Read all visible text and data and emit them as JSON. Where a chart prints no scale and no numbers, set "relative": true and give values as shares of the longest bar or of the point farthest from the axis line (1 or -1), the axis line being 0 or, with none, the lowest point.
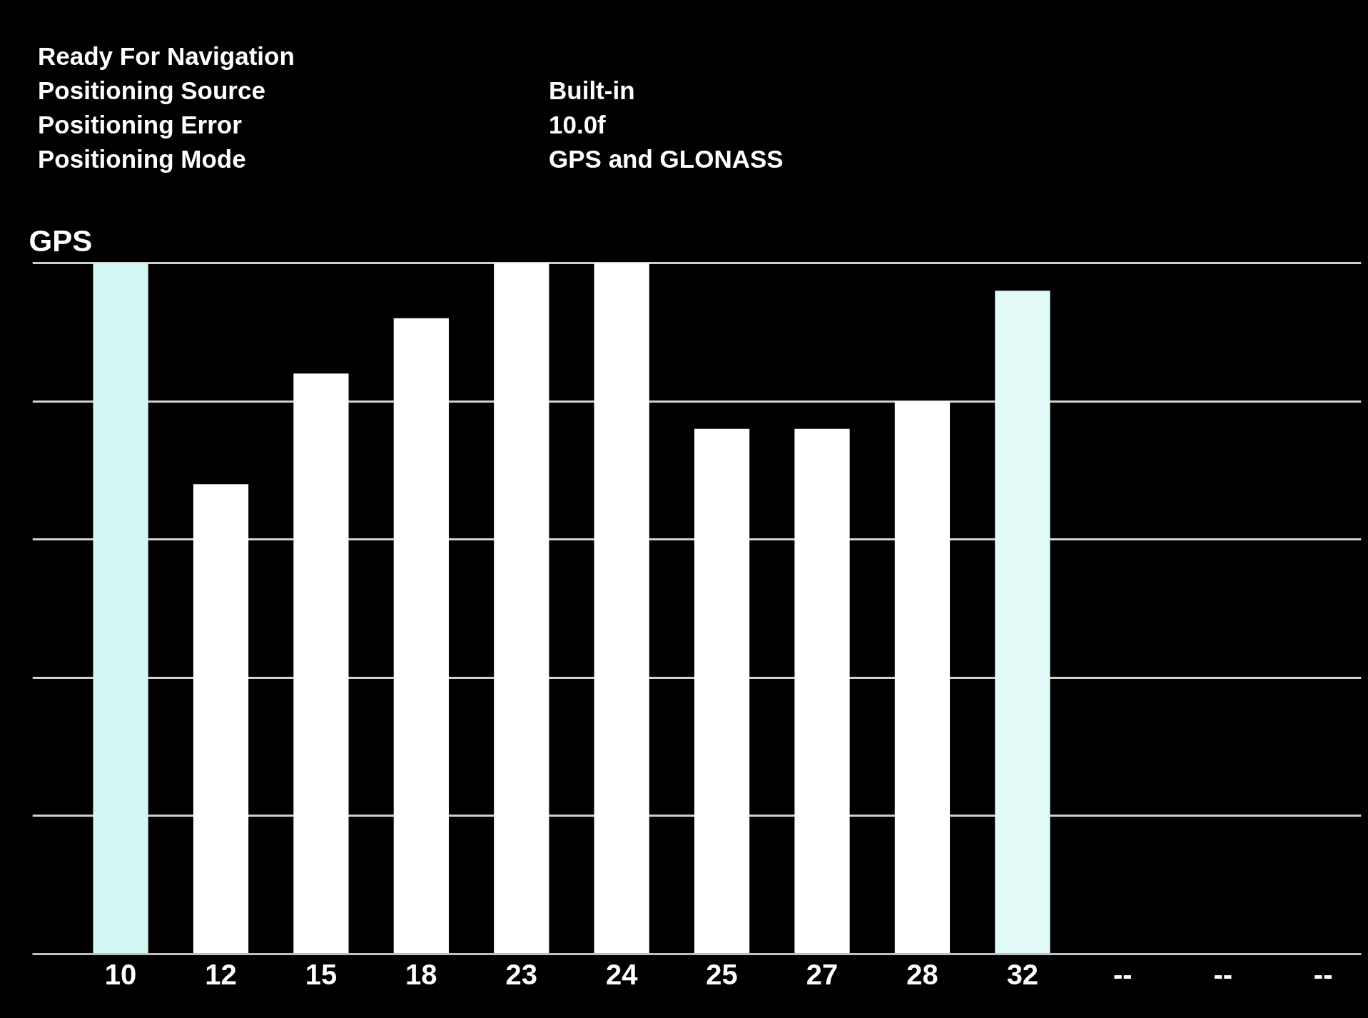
{
  "chart_data": {
    "type": "bar",
    "title": "GPS",
    "annotations": [
      "Ready For Navigation",
      "Positioning Source",
      "Built-in",
      "Positioning Error",
      "10.0f",
      "Positioning Mode",
      "GPS and GLONASS"
    ],
    "categories": [
      "10",
      "12",
      "15",
      "18",
      "23",
      "24",
      "25",
      "27",
      "28",
      "32",
      "--",
      "--",
      "--"
    ],
    "values": [
      1,
      0.68,
      0.84,
      0.92,
      1,
      1,
      0.76,
      0.76,
      0.8,
      0.96,
      null,
      null,
      null
    ],
    "colors": [
      "#d2f8f3",
      "#ffffff",
      "#ffffff",
      "#ffffff",
      "#ffffff",
      "#ffffff",
      "#ffffff",
      "#ffffff",
      "#ffffff",
      "#e2faf7",
      "#ffffff",
      "#ffffff",
      "#ffffff"
    ],
    "relative": true,
    "grid": "y"
  }
}
